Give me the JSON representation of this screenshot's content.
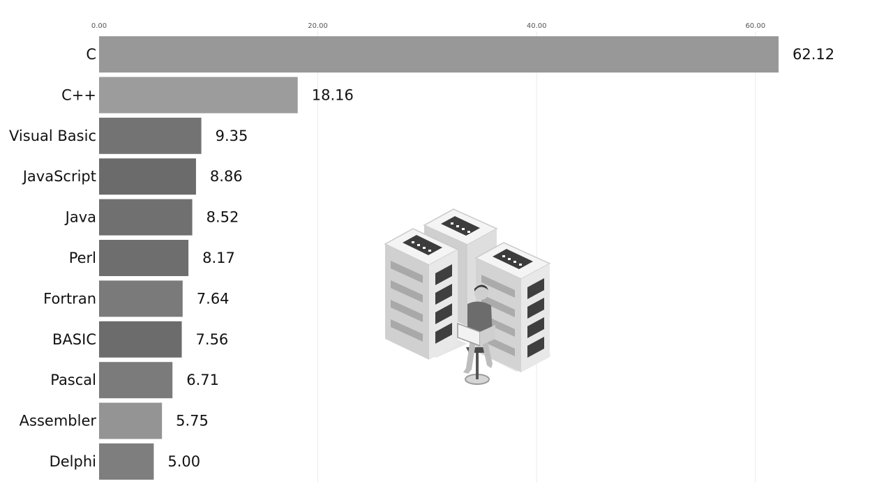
{
  "chart_data": {
    "type": "bar",
    "orientation": "horizontal",
    "title": "",
    "xlabel": "",
    "ylabel": "",
    "xlim": [
      0,
      62.12
    ],
    "ticks": [
      0,
      20,
      40,
      60
    ],
    "tick_labels": [
      "0.00",
      "20.00",
      "40.00",
      "60.00"
    ],
    "grid": true,
    "categories": [
      "C",
      "C++",
      "Visual Basic",
      "JavaScript",
      "Java",
      "Perl",
      "Fortran",
      "BASIC",
      "Pascal",
      "Assembler",
      "Delphi"
    ],
    "values": [
      62.12,
      18.16,
      9.35,
      8.86,
      8.52,
      8.17,
      7.64,
      7.56,
      6.71,
      5.75,
      5.0
    ],
    "value_labels": [
      "62.12",
      "18.16",
      "9.35",
      "8.86",
      "8.52",
      "8.17",
      "7.64",
      "7.56",
      "6.71",
      "5.75",
      "5.00"
    ],
    "colors": [
      "#989898",
      "#9c9c9c",
      "#737373",
      "#6b6b6b",
      "#707070",
      "#6e6e6e",
      "#7a7a7a",
      "#6c6c6c",
      "#7b7b7b",
      "#949494",
      "#7e7e7e"
    ]
  },
  "illustration": {
    "icon": "server-racks-with-person-icon"
  }
}
